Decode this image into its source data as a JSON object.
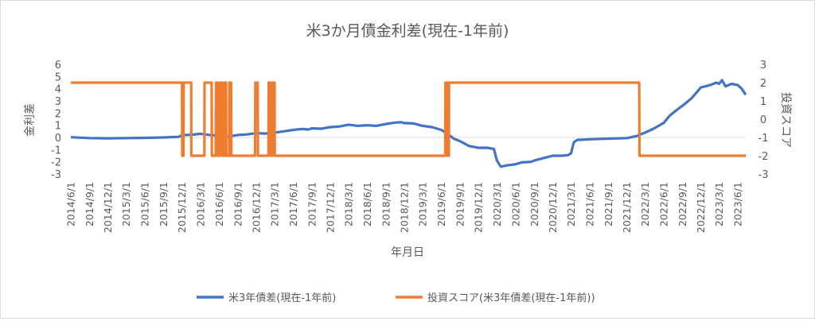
{
  "chart_data": {
    "type": "line",
    "title": "米3か月債金利差(現在-1年前)",
    "xlabel": "年月日",
    "ylabel_left": "金利差",
    "ylabel_right": "投資スコア",
    "ylim_left": [
      -3,
      6
    ],
    "ylim_right": [
      -3,
      3
    ],
    "yticks_left": [
      "6",
      "5",
      "4",
      "3",
      "2",
      "1",
      "0",
      "-1",
      "-2",
      "-3"
    ],
    "yticks_right": [
      "3",
      "2",
      "1",
      "0",
      "-1",
      "-2",
      "-3"
    ],
    "x_range": [
      "2014-06-01",
      "2023-07-10"
    ],
    "xticks": [
      "2014/6/1",
      "2014/9/1",
      "2014/12/1",
      "2015/3/1",
      "2015/6/1",
      "2015/9/1",
      "2015/12/1",
      "2016/3/1",
      "2016/6/1",
      "2016/9/1",
      "2016/12/1",
      "2017/3/1",
      "2017/6/1",
      "2017/9/1",
      "2017/12/1",
      "2018/3/1",
      "2018/6/1",
      "2018/9/1",
      "2018/12/1",
      "2019/3/1",
      "2019/6/1",
      "2019/9/1",
      "2019/12/1",
      "2020/3/1",
      "2020/6/1",
      "2020/9/1",
      "2020/12/1",
      "2021/3/1",
      "2021/6/1",
      "2021/9/1",
      "2021/12/1",
      "2022/3/1",
      "2022/6/1",
      "2022/9/1",
      "2022/12/1",
      "2023/3/1",
      "2023/6/1"
    ],
    "grid": false,
    "legend_position": "bottom",
    "series": [
      {
        "name": "米3年債差(現在-1年前)",
        "axis": "left",
        "color": "#4472c4",
        "points": [
          [
            "2014-06-01",
            0.02
          ],
          [
            "2014-09-01",
            -0.05
          ],
          [
            "2014-12-01",
            -0.07
          ],
          [
            "2015-03-01",
            -0.05
          ],
          [
            "2015-06-01",
            -0.03
          ],
          [
            "2015-09-01",
            0.0
          ],
          [
            "2015-11-15",
            0.05
          ],
          [
            "2015-12-01",
            0.18
          ],
          [
            "2016-01-15",
            0.22
          ],
          [
            "2016-03-01",
            0.3
          ],
          [
            "2016-04-15",
            0.2
          ],
          [
            "2016-06-01",
            0.15
          ],
          [
            "2016-07-15",
            0.08
          ],
          [
            "2016-09-01",
            0.2
          ],
          [
            "2016-10-15",
            0.25
          ],
          [
            "2016-12-01",
            0.35
          ],
          [
            "2017-01-15",
            0.32
          ],
          [
            "2017-03-01",
            0.4
          ],
          [
            "2017-04-15",
            0.5
          ],
          [
            "2017-06-01",
            0.62
          ],
          [
            "2017-07-15",
            0.7
          ],
          [
            "2017-08-15",
            0.65
          ],
          [
            "2017-09-01",
            0.75
          ],
          [
            "2017-10-15",
            0.72
          ],
          [
            "2017-12-01",
            0.85
          ],
          [
            "2018-01-15",
            0.9
          ],
          [
            "2018-03-01",
            1.05
          ],
          [
            "2018-04-15",
            0.95
          ],
          [
            "2018-06-01",
            1.0
          ],
          [
            "2018-07-15",
            0.95
          ],
          [
            "2018-09-01",
            1.1
          ],
          [
            "2018-10-15",
            1.22
          ],
          [
            "2018-11-15",
            1.25
          ],
          [
            "2018-12-01",
            1.18
          ],
          [
            "2019-01-15",
            1.15
          ],
          [
            "2019-03-01",
            0.95
          ],
          [
            "2019-04-15",
            0.85
          ],
          [
            "2019-06-01",
            0.62
          ],
          [
            "2019-07-01",
            0.3
          ],
          [
            "2019-08-01",
            -0.1
          ],
          [
            "2019-09-01",
            -0.3
          ],
          [
            "2019-10-15",
            -0.7
          ],
          [
            "2019-12-01",
            -0.85
          ],
          [
            "2020-01-15",
            -0.85
          ],
          [
            "2020-02-15",
            -0.95
          ],
          [
            "2020-03-01",
            -1.9
          ],
          [
            "2020-03-20",
            -2.4
          ],
          [
            "2020-04-15",
            -2.3
          ],
          [
            "2020-06-01",
            -2.2
          ],
          [
            "2020-07-01",
            -2.05
          ],
          [
            "2020-08-15",
            -2.0
          ],
          [
            "2020-09-01",
            -1.9
          ],
          [
            "2020-10-15",
            -1.7
          ],
          [
            "2020-12-01",
            -1.5
          ],
          [
            "2021-01-15",
            -1.5
          ],
          [
            "2021-02-15",
            -1.45
          ],
          [
            "2021-03-01",
            -1.3
          ],
          [
            "2021-03-15",
            -0.4
          ],
          [
            "2021-04-01",
            -0.2
          ],
          [
            "2021-06-01",
            -0.15
          ],
          [
            "2021-09-01",
            -0.1
          ],
          [
            "2021-12-01",
            -0.05
          ],
          [
            "2022-01-15",
            0.1
          ],
          [
            "2022-03-01",
            0.4
          ],
          [
            "2022-04-15",
            0.75
          ],
          [
            "2022-06-01",
            1.2
          ],
          [
            "2022-07-01",
            1.8
          ],
          [
            "2022-08-15",
            2.4
          ],
          [
            "2022-09-01",
            2.6
          ],
          [
            "2022-10-15",
            3.2
          ],
          [
            "2022-11-15",
            3.8
          ],
          [
            "2022-12-01",
            4.1
          ],
          [
            "2023-01-15",
            4.3
          ],
          [
            "2023-02-15",
            4.5
          ],
          [
            "2023-03-01",
            4.4
          ],
          [
            "2023-03-15",
            4.7
          ],
          [
            "2023-04-01",
            4.2
          ],
          [
            "2023-05-01",
            4.4
          ],
          [
            "2023-06-01",
            4.3
          ],
          [
            "2023-06-20",
            4.0
          ],
          [
            "2023-07-10",
            3.5
          ]
        ]
      },
      {
        "name": "投資スコア(米3年債差(現在-1年前))",
        "axis": "right",
        "color": "#ed7d31",
        "points": [
          [
            "2014-06-01",
            2
          ],
          [
            "2015-12-01",
            2
          ],
          [
            "2015-12-02",
            -2
          ],
          [
            "2015-12-08",
            -2
          ],
          [
            "2015-12-09",
            2
          ],
          [
            "2016-01-15",
            2
          ],
          [
            "2016-01-16",
            -2
          ],
          [
            "2016-03-20",
            -2
          ],
          [
            "2016-03-21",
            2
          ],
          [
            "2016-04-25",
            2
          ],
          [
            "2016-04-26",
            -2
          ],
          [
            "2016-05-15",
            -2
          ],
          [
            "2016-05-16",
            2
          ],
          [
            "2016-05-25",
            2
          ],
          [
            "2016-05-26",
            -2
          ],
          [
            "2016-06-05",
            -2
          ],
          [
            "2016-06-06",
            2
          ],
          [
            "2016-06-15",
            2
          ],
          [
            "2016-06-16",
            -2
          ],
          [
            "2016-06-25",
            -2
          ],
          [
            "2016-06-26",
            2
          ],
          [
            "2016-07-05",
            2
          ],
          [
            "2016-07-06",
            -2
          ],
          [
            "2016-07-20",
            -2
          ],
          [
            "2016-07-21",
            2
          ],
          [
            "2016-07-30",
            2
          ],
          [
            "2016-07-31",
            -2
          ],
          [
            "2016-11-25",
            -2
          ],
          [
            "2016-11-26",
            2
          ],
          [
            "2016-12-08",
            2
          ],
          [
            "2016-12-09",
            -2
          ],
          [
            "2017-01-30",
            -2
          ],
          [
            "2017-01-31",
            2
          ],
          [
            "2017-02-10",
            2
          ],
          [
            "2017-02-11",
            -2
          ],
          [
            "2017-02-20",
            -2
          ],
          [
            "2017-02-21",
            2
          ],
          [
            "2017-03-01",
            2
          ],
          [
            "2017-03-02",
            -2
          ],
          [
            "2019-06-20",
            -2
          ],
          [
            "2019-06-21",
            2
          ],
          [
            "2019-06-30",
            2
          ],
          [
            "2019-07-01",
            -2
          ],
          [
            "2019-07-08",
            -2
          ],
          [
            "2019-07-09",
            2
          ],
          [
            "2022-01-31",
            2
          ],
          [
            "2022-02-01",
            -2
          ],
          [
            "2023-07-10",
            -2
          ]
        ]
      }
    ]
  }
}
